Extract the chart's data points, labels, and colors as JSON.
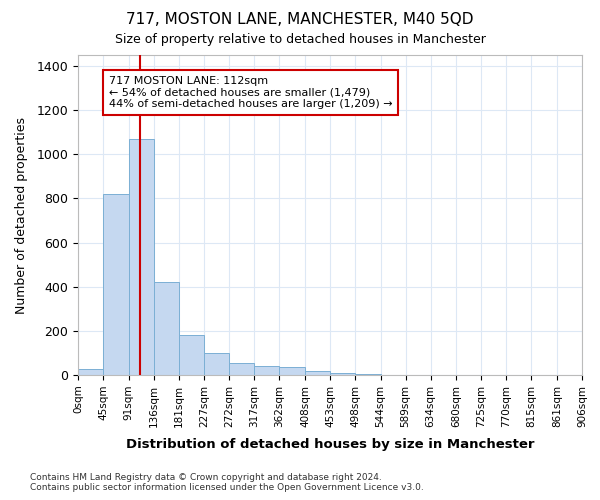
{
  "title": "717, MOSTON LANE, MANCHESTER, M40 5QD",
  "subtitle": "Size of property relative to detached houses in Manchester",
  "xlabel": "Distribution of detached houses by size in Manchester",
  "ylabel": "Number of detached properties",
  "bin_edges": [
    0,
    45,
    91,
    136,
    181,
    227,
    272,
    317,
    362,
    408,
    453,
    498,
    544,
    589,
    634,
    680,
    725,
    770,
    815,
    861,
    906
  ],
  "bar_heights": [
    25,
    820,
    1070,
    420,
    180,
    100,
    55,
    40,
    35,
    20,
    10,
    5,
    0,
    0,
    0,
    0,
    0,
    0,
    0,
    0
  ],
  "bar_color": "#c5d8f0",
  "bar_edge_color": "#7bafd4",
  "vline_x": 112,
  "vline_color": "#cc0000",
  "annotation_text": "717 MOSTON LANE: 112sqm\n← 54% of detached houses are smaller (1,479)\n44% of semi-detached houses are larger (1,209) →",
  "annotation_box_color": "#cc0000",
  "ylim": [
    0,
    1450
  ],
  "yticks": [
    0,
    200,
    400,
    600,
    800,
    1000,
    1200,
    1400
  ],
  "fig_bg": "#ffffff",
  "ax_bg": "#ffffff",
  "grid_color": "#dde8f5",
  "footnote": "Contains HM Land Registry data © Crown copyright and database right 2024.\nContains public sector information licensed under the Open Government Licence v3.0."
}
